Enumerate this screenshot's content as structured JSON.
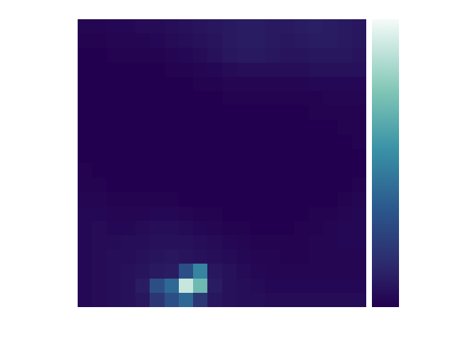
{
  "chart_data": {
    "type": "heatmap",
    "tick_labels": false,
    "colorbar_range": [
      0,
      1
    ],
    "cells": [
      [
        0.02,
        0.02,
        0.03,
        0.03,
        0.04,
        0.04,
        0.05,
        0.06,
        0.07,
        0.08,
        0.09,
        0.1,
        0.1,
        0.09,
        0.09,
        0.1,
        0.11,
        0.1,
        0.09,
        0.08
      ],
      [
        0.01,
        0.01,
        0.02,
        0.02,
        0.02,
        0.03,
        0.04,
        0.05,
        0.06,
        0.07,
        0.09,
        0.1,
        0.1,
        0.09,
        0.08,
        0.09,
        0.1,
        0.1,
        0.09,
        0.08
      ],
      [
        0.0,
        0.0,
        0.01,
        0.01,
        0.01,
        0.01,
        0.02,
        0.03,
        0.04,
        0.06,
        0.08,
        0.09,
        0.09,
        0.08,
        0.07,
        0.07,
        0.08,
        0.08,
        0.08,
        0.07
      ],
      [
        0.0,
        0.0,
        0.0,
        0.0,
        0.0,
        0.0,
        0.01,
        0.01,
        0.02,
        0.03,
        0.04,
        0.05,
        0.05,
        0.05,
        0.05,
        0.05,
        0.06,
        0.06,
        0.06,
        0.06
      ],
      [
        0.0,
        0.0,
        0.0,
        0.0,
        0.0,
        0.0,
        0.0,
        0.0,
        0.01,
        0.01,
        0.02,
        0.02,
        0.02,
        0.02,
        0.02,
        0.02,
        0.03,
        0.03,
        0.03,
        0.03
      ],
      [
        0.0,
        0.0,
        0.0,
        0.0,
        0.0,
        0.0,
        0.0,
        0.0,
        0.0,
        0.0,
        0.01,
        0.01,
        0.01,
        0.01,
        0.01,
        0.01,
        0.01,
        0.02,
        0.02,
        0.02
      ],
      [
        0.0,
        0.0,
        0.0,
        0.0,
        0.0,
        0.0,
        0.0,
        0.0,
        0.0,
        0.0,
        0.0,
        0.0,
        0.0,
        0.0,
        0.0,
        0.0,
        0.01,
        0.01,
        0.01,
        0.01
      ],
      [
        0.0,
        0.0,
        0.0,
        0.0,
        0.0,
        0.0,
        0.0,
        0.0,
        0.0,
        0.0,
        0.0,
        0.0,
        0.0,
        0.0,
        0.0,
        0.0,
        0.0,
        0.0,
        0.01,
        0.01
      ],
      [
        0.0,
        0.0,
        0.0,
        0.0,
        0.0,
        0.0,
        0.0,
        0.0,
        0.0,
        0.0,
        0.0,
        0.0,
        0.0,
        0.0,
        0.0,
        0.0,
        0.0,
        0.0,
        0.0,
        0.01
      ],
      [
        0.0,
        0.0,
        0.0,
        0.0,
        0.0,
        0.0,
        0.0,
        0.0,
        0.0,
        0.0,
        0.0,
        0.0,
        0.0,
        0.0,
        0.0,
        0.0,
        0.0,
        0.0,
        0.0,
        0.0
      ],
      [
        0.01,
        0.0,
        0.0,
        0.0,
        0.0,
        0.0,
        0.0,
        0.0,
        0.0,
        0.0,
        0.0,
        0.0,
        0.0,
        0.0,
        0.0,
        0.0,
        0.0,
        0.0,
        0.0,
        0.0
      ],
      [
        0.01,
        0.01,
        0.0,
        0.0,
        0.0,
        0.0,
        0.0,
        0.0,
        0.0,
        0.0,
        0.0,
        0.0,
        0.0,
        0.0,
        0.0,
        0.0,
        0.0,
        0.0,
        0.0,
        0.01
      ],
      [
        0.02,
        0.02,
        0.01,
        0.01,
        0.01,
        0.01,
        0.01,
        0.0,
        0.0,
        0.0,
        0.0,
        0.0,
        0.0,
        0.0,
        0.0,
        0.0,
        0.0,
        0.0,
        0.01,
        0.02
      ],
      [
        0.03,
        0.03,
        0.02,
        0.02,
        0.02,
        0.03,
        0.03,
        0.02,
        0.01,
        0.01,
        0.0,
        0.0,
        0.0,
        0.0,
        0.0,
        0.0,
        0.01,
        0.01,
        0.02,
        0.03
      ],
      [
        0.03,
        0.04,
        0.03,
        0.03,
        0.04,
        0.05,
        0.05,
        0.04,
        0.03,
        0.02,
        0.01,
        0.01,
        0.0,
        0.0,
        0.0,
        0.01,
        0.01,
        0.02,
        0.03,
        0.03
      ],
      [
        0.03,
        0.04,
        0.04,
        0.05,
        0.05,
        0.06,
        0.06,
        0.06,
        0.05,
        0.04,
        0.03,
        0.02,
        0.01,
        0.01,
        0.01,
        0.01,
        0.02,
        0.02,
        0.03,
        0.03
      ],
      [
        0.03,
        0.04,
        0.05,
        0.05,
        0.06,
        0.07,
        0.08,
        0.07,
        0.06,
        0.05,
        0.04,
        0.03,
        0.02,
        0.02,
        0.01,
        0.01,
        0.02,
        0.02,
        0.02,
        0.02
      ],
      [
        0.03,
        0.04,
        0.05,
        0.06,
        0.07,
        0.09,
        0.1,
        0.3,
        0.5,
        0.08,
        0.06,
        0.04,
        0.03,
        0.02,
        0.02,
        0.02,
        0.02,
        0.02,
        0.02,
        0.02
      ],
      [
        0.03,
        0.04,
        0.05,
        0.06,
        0.1,
        0.3,
        0.4,
        0.9,
        0.7,
        0.1,
        0.06,
        0.05,
        0.04,
        0.03,
        0.03,
        0.03,
        0.03,
        0.03,
        0.03,
        0.03
      ],
      [
        0.03,
        0.04,
        0.05,
        0.06,
        0.08,
        0.2,
        0.3,
        0.4,
        0.2,
        0.08,
        0.06,
        0.05,
        0.05,
        0.04,
        0.04,
        0.04,
        0.04,
        0.04,
        0.04,
        0.04
      ]
    ]
  }
}
